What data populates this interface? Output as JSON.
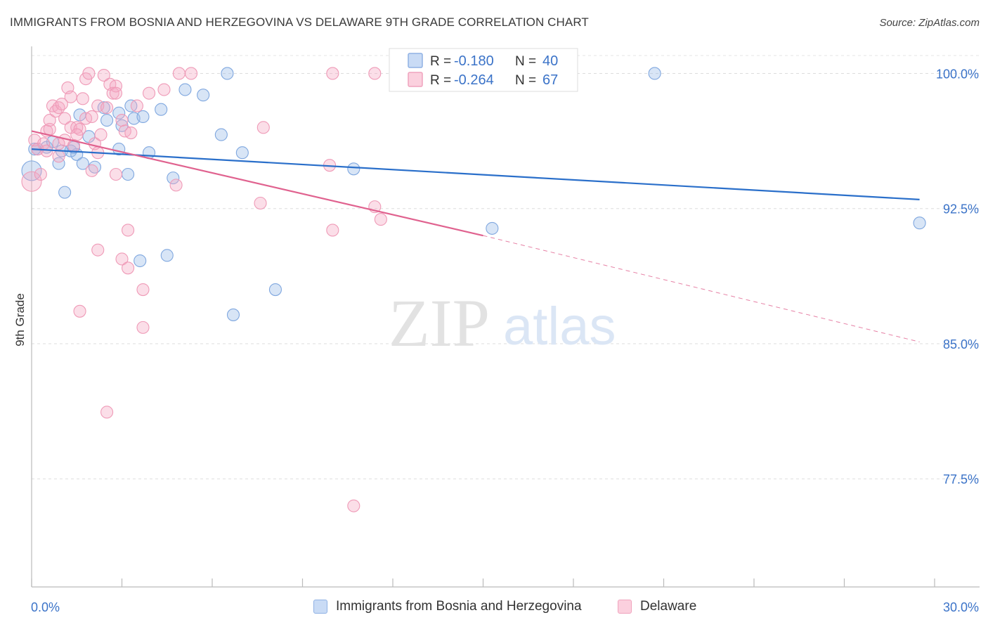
{
  "title": "IMMIGRANTS FROM BOSNIA AND HERZEGOVINA VS DELAWARE 9TH GRADE CORRELATION CHART",
  "source": "Source: ZipAtlas.com",
  "watermark": {
    "zip": "ZIP",
    "atlas": "atlas"
  },
  "chart_data": {
    "type": "scatter",
    "ylabel": "9th Grade",
    "xlim": [
      0,
      30
    ],
    "ylim": [
      71.5,
      101.5
    ],
    "x_tick_labels": [
      {
        "value": 0,
        "label": "0.0%"
      },
      {
        "value": 30,
        "label": "30.0%"
      }
    ],
    "y_tick_labels": [
      {
        "value": 100,
        "label": "100.0%"
      },
      {
        "value": 92.5,
        "label": "92.5%"
      },
      {
        "value": 85,
        "label": "85.0%"
      },
      {
        "value": 77.5,
        "label": "77.5%"
      }
    ],
    "grid": true,
    "legend_position": "top-center",
    "series": [
      {
        "name": "Immigrants from Bosnia and Herzegovina",
        "color": "#9dbde9",
        "line_color": "#2a6fca",
        "r_label": "R = ",
        "r_value": "-0.180",
        "n_label": "N = ",
        "n_value": "40",
        "trend": {
          "x0": 0,
          "y0": 95.8,
          "x1": 29.5,
          "y1": 93.0
        },
        "points": [
          [
            0.0,
            94.6
          ],
          [
            0.2,
            95.8
          ],
          [
            0.5,
            95.9
          ],
          [
            0.7,
            96.2
          ],
          [
            0.9,
            95.0
          ],
          [
            1.1,
            93.4
          ],
          [
            1.0,
            95.7
          ],
          [
            1.3,
            95.7
          ],
          [
            1.5,
            95.5
          ],
          [
            1.6,
            97.7
          ],
          [
            1.7,
            95.0
          ],
          [
            1.9,
            96.5
          ],
          [
            2.1,
            94.8
          ],
          [
            2.4,
            98.1
          ],
          [
            2.5,
            97.4
          ],
          [
            2.9,
            95.8
          ],
          [
            2.9,
            97.8
          ],
          [
            3.0,
            97.1
          ],
          [
            3.2,
            94.4
          ],
          [
            3.3,
            98.2
          ],
          [
            3.4,
            97.5
          ],
          [
            3.7,
            97.6
          ],
          [
            3.9,
            95.6
          ],
          [
            4.3,
            98.0
          ],
          [
            4.7,
            94.2
          ],
          [
            5.1,
            99.1
          ],
          [
            5.7,
            98.8
          ],
          [
            6.3,
            96.6
          ],
          [
            6.5,
            100.0
          ],
          [
            7.0,
            95.6
          ],
          [
            3.6,
            89.6
          ],
          [
            4.5,
            89.9
          ],
          [
            6.7,
            86.6
          ],
          [
            8.1,
            88.0
          ],
          [
            10.7,
            94.7
          ],
          [
            15.3,
            91.4
          ],
          [
            20.7,
            100.0
          ],
          [
            29.5,
            91.7
          ],
          [
            0.1,
            95.8
          ],
          [
            1.4,
            95.9
          ]
        ]
      },
      {
        "name": "Delaware",
        "color": "#f5a8c2",
        "line_color": "#e0628f",
        "r_label": "R = ",
        "r_value": "-0.264",
        "n_label": "N = ",
        "n_value": "67",
        "trend": {
          "x0": 0,
          "y0": 96.8,
          "x1": 15.0,
          "y1": 91.0
        },
        "trend_ext": {
          "x0": 15.0,
          "y0": 91.0,
          "x1": 29.5,
          "y1": 85.1
        },
        "points": [
          [
            0.0,
            94.0
          ],
          [
            0.1,
            96.3
          ],
          [
            0.2,
            95.8
          ],
          [
            0.3,
            94.4
          ],
          [
            0.4,
            96.1
          ],
          [
            0.5,
            95.7
          ],
          [
            0.5,
            96.8
          ],
          [
            0.6,
            96.9
          ],
          [
            0.6,
            97.4
          ],
          [
            0.7,
            98.2
          ],
          [
            0.8,
            97.9
          ],
          [
            0.9,
            98.1
          ],
          [
            0.9,
            95.4
          ],
          [
            1.0,
            98.3
          ],
          [
            1.1,
            96.3
          ],
          [
            1.1,
            97.5
          ],
          [
            1.2,
            99.2
          ],
          [
            1.3,
            98.7
          ],
          [
            1.3,
            97.0
          ],
          [
            1.4,
            96.0
          ],
          [
            1.5,
            97.0
          ],
          [
            1.6,
            96.9
          ],
          [
            1.7,
            98.6
          ],
          [
            1.8,
            99.7
          ],
          [
            1.8,
            97.5
          ],
          [
            1.9,
            100.0
          ],
          [
            2.0,
            97.6
          ],
          [
            2.0,
            94.6
          ],
          [
            2.1,
            96.1
          ],
          [
            2.2,
            98.2
          ],
          [
            2.2,
            95.6
          ],
          [
            2.3,
            96.6
          ],
          [
            2.4,
            99.9
          ],
          [
            2.5,
            98.1
          ],
          [
            2.6,
            99.4
          ],
          [
            2.7,
            98.9
          ],
          [
            2.8,
            99.3
          ],
          [
            2.8,
            98.9
          ],
          [
            2.8,
            94.4
          ],
          [
            3.0,
            97.4
          ],
          [
            3.1,
            96.8
          ],
          [
            3.3,
            96.7
          ],
          [
            3.5,
            98.2
          ],
          [
            3.9,
            98.9
          ],
          [
            4.4,
            99.1
          ],
          [
            4.9,
            100.0
          ],
          [
            5.3,
            100.0
          ],
          [
            3.2,
            91.3
          ],
          [
            2.2,
            90.2
          ],
          [
            3.0,
            89.7
          ],
          [
            3.2,
            89.2
          ],
          [
            3.7,
            88.0
          ],
          [
            1.6,
            86.8
          ],
          [
            3.7,
            85.9
          ],
          [
            2.5,
            81.2
          ],
          [
            4.8,
            93.8
          ],
          [
            7.6,
            92.8
          ],
          [
            7.7,
            97.0
          ],
          [
            9.9,
            94.9
          ],
          [
            10.0,
            100.0
          ],
          [
            10.0,
            91.3
          ],
          [
            11.4,
            100.0
          ],
          [
            11.4,
            92.6
          ],
          [
            11.6,
            91.9
          ],
          [
            10.7,
            76.0
          ],
          [
            1.5,
            96.6
          ],
          [
            0.9,
            96.1
          ]
        ]
      }
    ]
  }
}
